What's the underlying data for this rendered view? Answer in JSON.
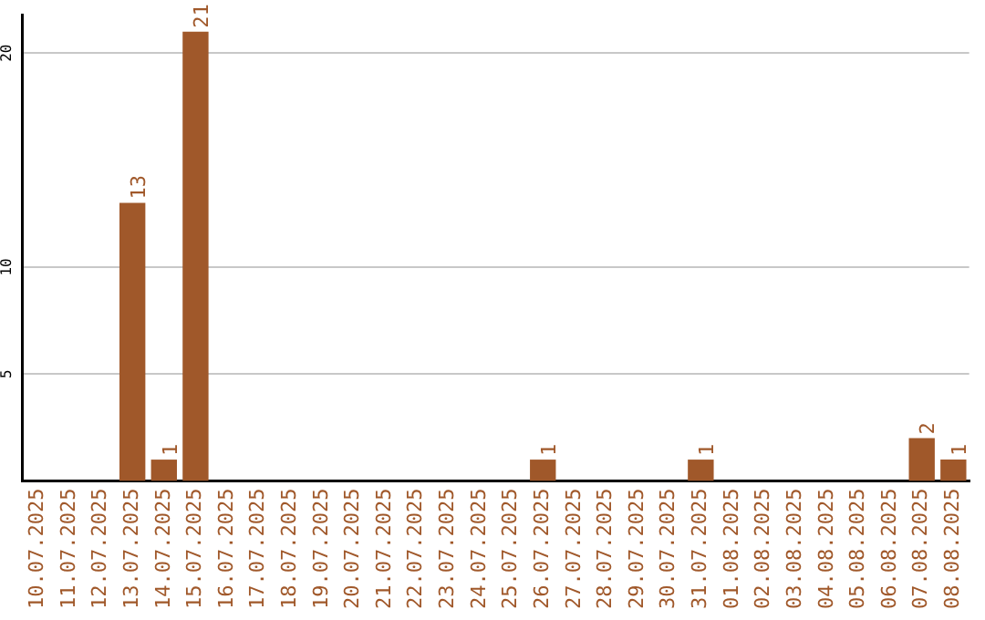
{
  "chart_data": {
    "type": "bar",
    "categories": [
      "10.07.2025",
      "11.07.2025",
      "12.07.2025",
      "13.07.2025",
      "14.07.2025",
      "15.07.2025",
      "16.07.2025",
      "17.07.2025",
      "18.07.2025",
      "19.07.2025",
      "20.07.2025",
      "21.07.2025",
      "22.07.2025",
      "23.07.2025",
      "24.07.2025",
      "25.07.2025",
      "26.07.2025",
      "27.07.2025",
      "28.07.2025",
      "29.07.2025",
      "30.07.2025",
      "31.07.2025",
      "01.08.2025",
      "02.08.2025",
      "03.08.2025",
      "04.08.2025",
      "05.08.2025",
      "06.08.2025",
      "07.08.2025",
      "08.08.2025"
    ],
    "values": [
      0,
      0,
      0,
      13,
      1,
      21,
      0,
      0,
      0,
      0,
      0,
      0,
      0,
      0,
      0,
      0,
      1,
      0,
      0,
      0,
      0,
      1,
      0,
      0,
      0,
      0,
      0,
      0,
      2,
      1
    ],
    "value_labels": [
      null,
      null,
      null,
      "13",
      "1",
      "21",
      null,
      null,
      null,
      null,
      null,
      null,
      null,
      null,
      null,
      null,
      "1",
      null,
      null,
      null,
      null,
      "1",
      null,
      null,
      null,
      null,
      null,
      null,
      "2",
      "1"
    ],
    "color": "#a0582a",
    "ylim": [
      0,
      21.8
    ],
    "yticks": [
      5,
      10,
      20
    ],
    "grid": "y",
    "legend": false
  }
}
